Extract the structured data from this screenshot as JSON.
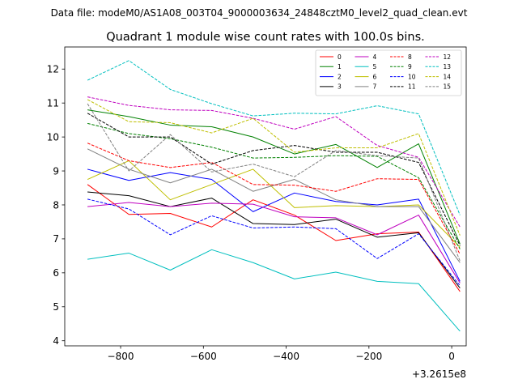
{
  "figure": {
    "suptitle": "Data file: modeM0/AS1A08_003T04_9000003634_24848cztM0_level2_quad_clean.evt"
  },
  "chart_data": {
    "type": "line",
    "title": "Quadrant 1 module wise count rates with 100.0s bins.",
    "xlabel": "",
    "ylabel": "",
    "x_offset_label": "+3.2615e8",
    "xlim": [
      -935,
      35
    ],
    "ylim": [
      3.85,
      12.65
    ],
    "xticks": [
      -800,
      -600,
      -400,
      -200,
      0
    ],
    "xtick_labels": [
      "−800",
      "−600",
      "−400",
      "−200",
      "0"
    ],
    "yticks": [
      4,
      5,
      6,
      7,
      8,
      9,
      10,
      11,
      12
    ],
    "ytick_labels": [
      "4",
      "5",
      "6",
      "7",
      "8",
      "9",
      "10",
      "11",
      "12"
    ],
    "grid": false,
    "legend_position": "top-right",
    "legend_columns": 4,
    "x": [
      -880,
      -780,
      -680,
      -580,
      -480,
      -380,
      -280,
      -180,
      -80,
      20
    ],
    "series": [
      {
        "name": "0",
        "color": "#ff0000",
        "dash": "solid",
        "values": [
          8.6,
          7.72,
          7.75,
          7.35,
          8.15,
          7.7,
          6.95,
          7.15,
          7.2,
          5.45
        ]
      },
      {
        "name": "1",
        "color": "#008000",
        "dash": "solid",
        "values": [
          10.8,
          10.6,
          10.35,
          10.3,
          10.0,
          9.5,
          9.78,
          9.1,
          9.8,
          6.85
        ]
      },
      {
        "name": "2",
        "color": "#0000ff",
        "dash": "solid",
        "values": [
          9.05,
          8.72,
          8.95,
          8.75,
          7.8,
          8.35,
          8.1,
          8.0,
          8.17,
          5.75
        ]
      },
      {
        "name": "3",
        "color": "#000000",
        "dash": "solid",
        "values": [
          8.38,
          8.27,
          7.95,
          8.2,
          7.45,
          7.42,
          7.58,
          7.05,
          7.18,
          5.55
        ]
      },
      {
        "name": "4",
        "color": "#bf00bf",
        "dash": "solid",
        "values": [
          7.95,
          8.07,
          7.95,
          8.05,
          8.02,
          7.65,
          7.62,
          7.12,
          7.7,
          5.7
        ]
      },
      {
        "name": "5",
        "color": "#00bfbf",
        "dash": "solid",
        "values": [
          6.4,
          6.58,
          6.08,
          6.68,
          6.3,
          5.82,
          6.02,
          5.75,
          5.68,
          4.28
        ]
      },
      {
        "name": "6",
        "color": "#bfbf00",
        "dash": "solid",
        "values": [
          8.75,
          9.3,
          8.15,
          8.6,
          9.05,
          7.92,
          7.98,
          7.95,
          8.0,
          6.75
        ]
      },
      {
        "name": "7",
        "color": "#808080",
        "dash": "solid",
        "values": [
          9.65,
          9.05,
          8.65,
          9.05,
          8.4,
          8.75,
          8.15,
          7.95,
          7.95,
          6.3
        ]
      },
      {
        "name": "8",
        "color": "#ff0000",
        "dash": "dashed",
        "values": [
          9.82,
          9.3,
          9.1,
          9.25,
          8.6,
          8.58,
          8.4,
          8.77,
          8.75,
          6.55
        ]
      },
      {
        "name": "9",
        "color": "#008000",
        "dash": "dashed",
        "values": [
          10.4,
          10.1,
          9.95,
          9.7,
          9.38,
          9.4,
          9.45,
          9.43,
          8.8,
          6.7
        ]
      },
      {
        "name": "10",
        "color": "#0000ff",
        "dash": "dashed",
        "values": [
          8.17,
          7.88,
          7.12,
          7.68,
          7.32,
          7.35,
          7.3,
          6.42,
          7.15,
          5.62
        ]
      },
      {
        "name": "11",
        "color": "#000000",
        "dash": "dashed",
        "values": [
          10.7,
          10.0,
          10.0,
          9.2,
          9.6,
          9.75,
          9.55,
          9.55,
          9.25,
          6.8
        ]
      },
      {
        "name": "12",
        "color": "#bf00bf",
        "dash": "dashed",
        "values": [
          11.18,
          10.93,
          10.8,
          10.78,
          10.55,
          10.23,
          10.6,
          9.75,
          9.4,
          7.35
        ]
      },
      {
        "name": "13",
        "color": "#00bfbf",
        "dash": "dashed",
        "values": [
          11.67,
          12.25,
          11.4,
          10.98,
          10.62,
          10.7,
          10.68,
          10.92,
          10.68,
          7.7
        ]
      },
      {
        "name": "14",
        "color": "#bfbf00",
        "dash": "dashed",
        "values": [
          11.1,
          10.45,
          10.42,
          10.12,
          10.55,
          9.55,
          9.68,
          9.68,
          10.1,
          7.1
        ]
      },
      {
        "name": "15",
        "color": "#808080",
        "dash": "dashed",
        "values": [
          10.98,
          9.0,
          10.07,
          8.97,
          9.2,
          8.83,
          9.6,
          9.45,
          9.38,
          6.35
        ]
      }
    ]
  }
}
